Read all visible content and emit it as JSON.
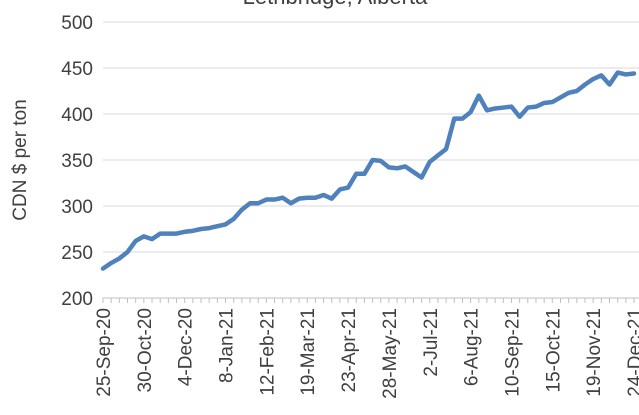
{
  "chart_data": {
    "type": "line",
    "title": "Lethbridge, Alberta",
    "y_label": "CDN $ per ton",
    "categories": [
      "25-Sep-20",
      null,
      null,
      null,
      null,
      "30-Oct-20",
      null,
      null,
      null,
      null,
      "4-Dec-20",
      null,
      null,
      null,
      null,
      "8-Jan-21",
      null,
      null,
      null,
      null,
      "12-Feb-21",
      null,
      null,
      null,
      null,
      "19-Mar-21",
      null,
      null,
      null,
      null,
      "23-Apr-21",
      null,
      null,
      null,
      null,
      "28-May-21",
      null,
      null,
      null,
      null,
      "2-Jul-21",
      null,
      null,
      null,
      null,
      "6-Aug-21",
      null,
      null,
      null,
      null,
      "10-Sep-21",
      null,
      null,
      null,
      null,
      "15-Oct-21",
      null,
      null,
      null,
      null,
      "19-Nov-21",
      null,
      null,
      null,
      null,
      "24-Dec-21"
    ],
    "series": [
      {
        "name": "Lethbridge, Alberta",
        "color": "#4f81bd",
        "values": [
          232,
          238,
          243,
          250,
          262,
          267,
          264,
          270,
          270,
          270,
          272,
          273,
          275,
          276,
          278,
          280,
          286,
          296,
          303,
          303,
          307,
          307,
          309,
          303,
          308,
          309,
          309,
          312,
          308,
          318,
          320,
          335,
          335,
          350,
          349,
          342,
          341,
          343,
          337,
          331,
          348,
          355,
          362,
          395,
          395,
          402,
          420,
          404,
          406,
          407,
          408,
          397,
          407,
          408,
          412,
          413,
          418,
          423,
          425,
          432,
          438,
          442,
          432,
          445,
          443,
          444
        ]
      }
    ],
    "ylim": [
      200,
      500
    ],
    "yticks": [
      200,
      250,
      300,
      350,
      400,
      450,
      500
    ],
    "grid": true
  }
}
